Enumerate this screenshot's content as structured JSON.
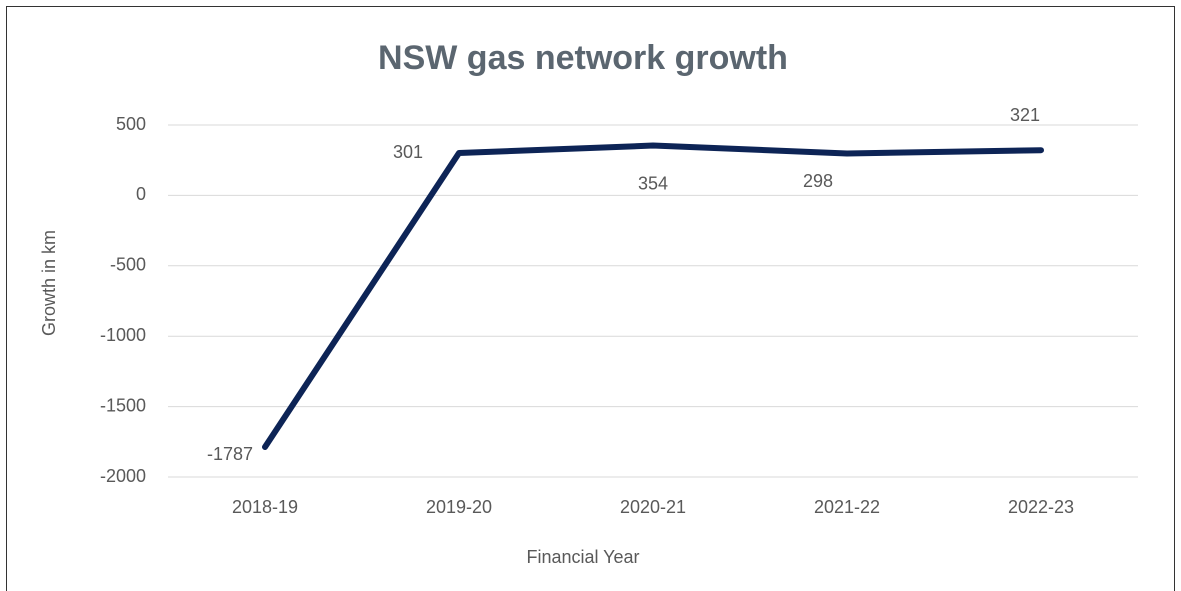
{
  "chart_data": {
    "type": "line",
    "title": "NSW gas network growth",
    "x_label": "Financial Year",
    "y_label": "Growth in km",
    "categories": [
      "2018-19",
      "2019-20",
      "2020-21",
      "2021-22",
      "2022-23"
    ],
    "series": [
      {
        "name": "Growth in km",
        "color": "#0d2456",
        "values": [
          -1787,
          301,
          354,
          298,
          321
        ]
      }
    ],
    "ylim": [
      -2000,
      500
    ],
    "yticks": [
      -2000,
      -1500,
      -1000,
      -500,
      0,
      500
    ],
    "grid": true
  }
}
